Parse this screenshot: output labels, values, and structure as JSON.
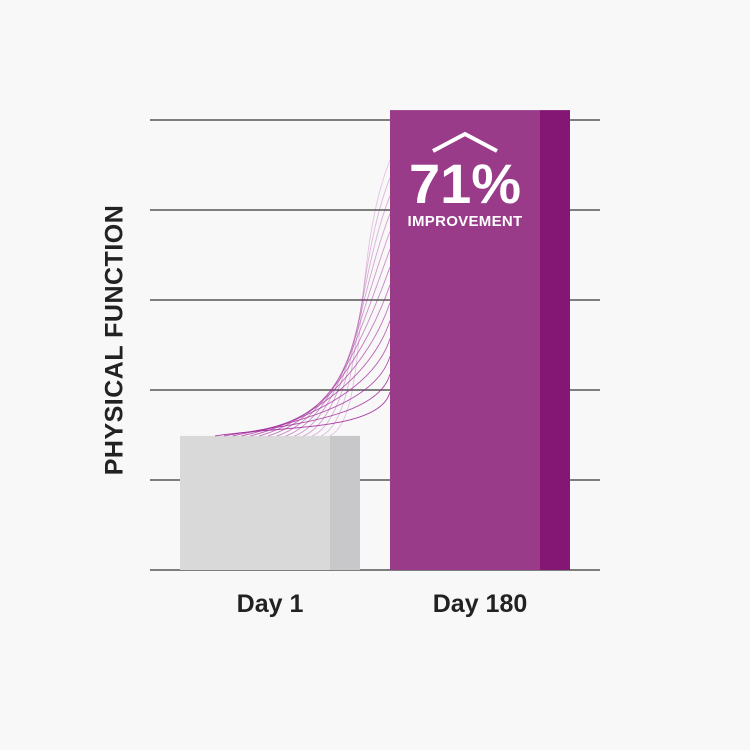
{
  "chart_data": {
    "type": "bar",
    "title": "",
    "ylabel": "PHYSICAL FUNCTION",
    "xlabel": "",
    "categories": [
      "Day 1",
      "Day 180"
    ],
    "values": [
      1.49,
      5.11
    ],
    "ylim": [
      0,
      5
    ],
    "grid": true,
    "gridlines": 5,
    "colors": {
      "Day 1": "#d9d9da",
      "Day 1 side": "#c8c8ca",
      "Day 180": "#993b89",
      "Day 180 side": "#841773",
      "connector": "#a0289a",
      "grid": "#555555"
    },
    "annotation": {
      "value": "71%",
      "label": "IMPROVEMENT",
      "icon": "caret-up-icon"
    }
  }
}
